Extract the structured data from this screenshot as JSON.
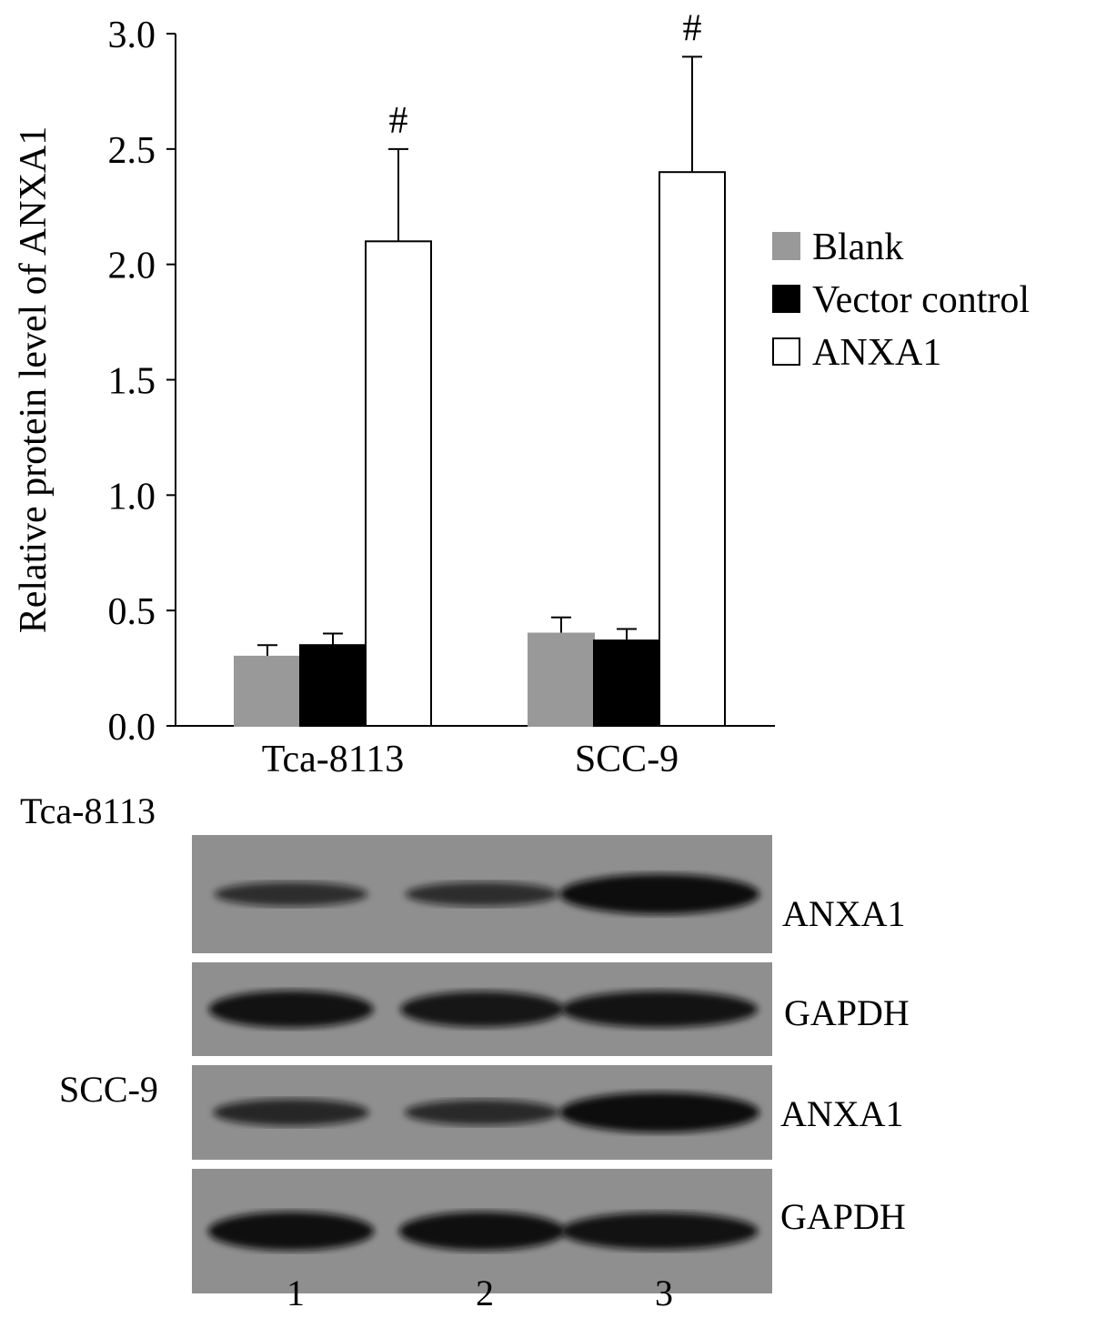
{
  "chart_data": {
    "type": "bar",
    "categories": [
      "Tca-8113",
      "SCC-9"
    ],
    "series": [
      {
        "name": "Blank",
        "color": "#999999",
        "values": [
          0.3,
          0.4
        ],
        "errors": [
          0.05,
          0.07
        ]
      },
      {
        "name": "Vector control",
        "color": "#000000",
        "values": [
          0.35,
          0.37
        ],
        "errors": [
          0.05,
          0.05
        ]
      },
      {
        "name": "ANXA1",
        "color": "#ffffff",
        "values": [
          2.1,
          2.4
        ],
        "errors": [
          0.4,
          0.5
        ]
      }
    ],
    "annotations": [
      {
        "category": "Tca-8113",
        "series": "ANXA1",
        "text": "#"
      },
      {
        "category": "SCC-9",
        "series": "ANXA1",
        "text": "#"
      }
    ],
    "ylabel": "Relative protein level of ANXA1",
    "ylim": [
      0,
      3.0
    ],
    "yticks": [
      "0.0",
      "0.5",
      "1.0",
      "1.5",
      "2.0",
      "2.5",
      "3.0"
    ],
    "legend_position": "right",
    "grid": false
  },
  "blot": {
    "groups": [
      {
        "cell_line": "Tca-8113",
        "bands": [
          {
            "label": "ANXA1",
            "intensity": [
              0.45,
              0.45,
              1.0
            ]
          },
          {
            "label": "GAPDH",
            "intensity": [
              0.9,
              0.85,
              0.88
            ]
          }
        ]
      },
      {
        "cell_line": "SCC-9",
        "bands": [
          {
            "label": "ANXA1",
            "intensity": [
              0.55,
              0.5,
              1.0
            ]
          },
          {
            "label": "GAPDH",
            "intensity": [
              0.95,
              0.95,
              0.9
            ]
          }
        ]
      }
    ],
    "lanes": [
      "1",
      "2",
      "3"
    ]
  }
}
